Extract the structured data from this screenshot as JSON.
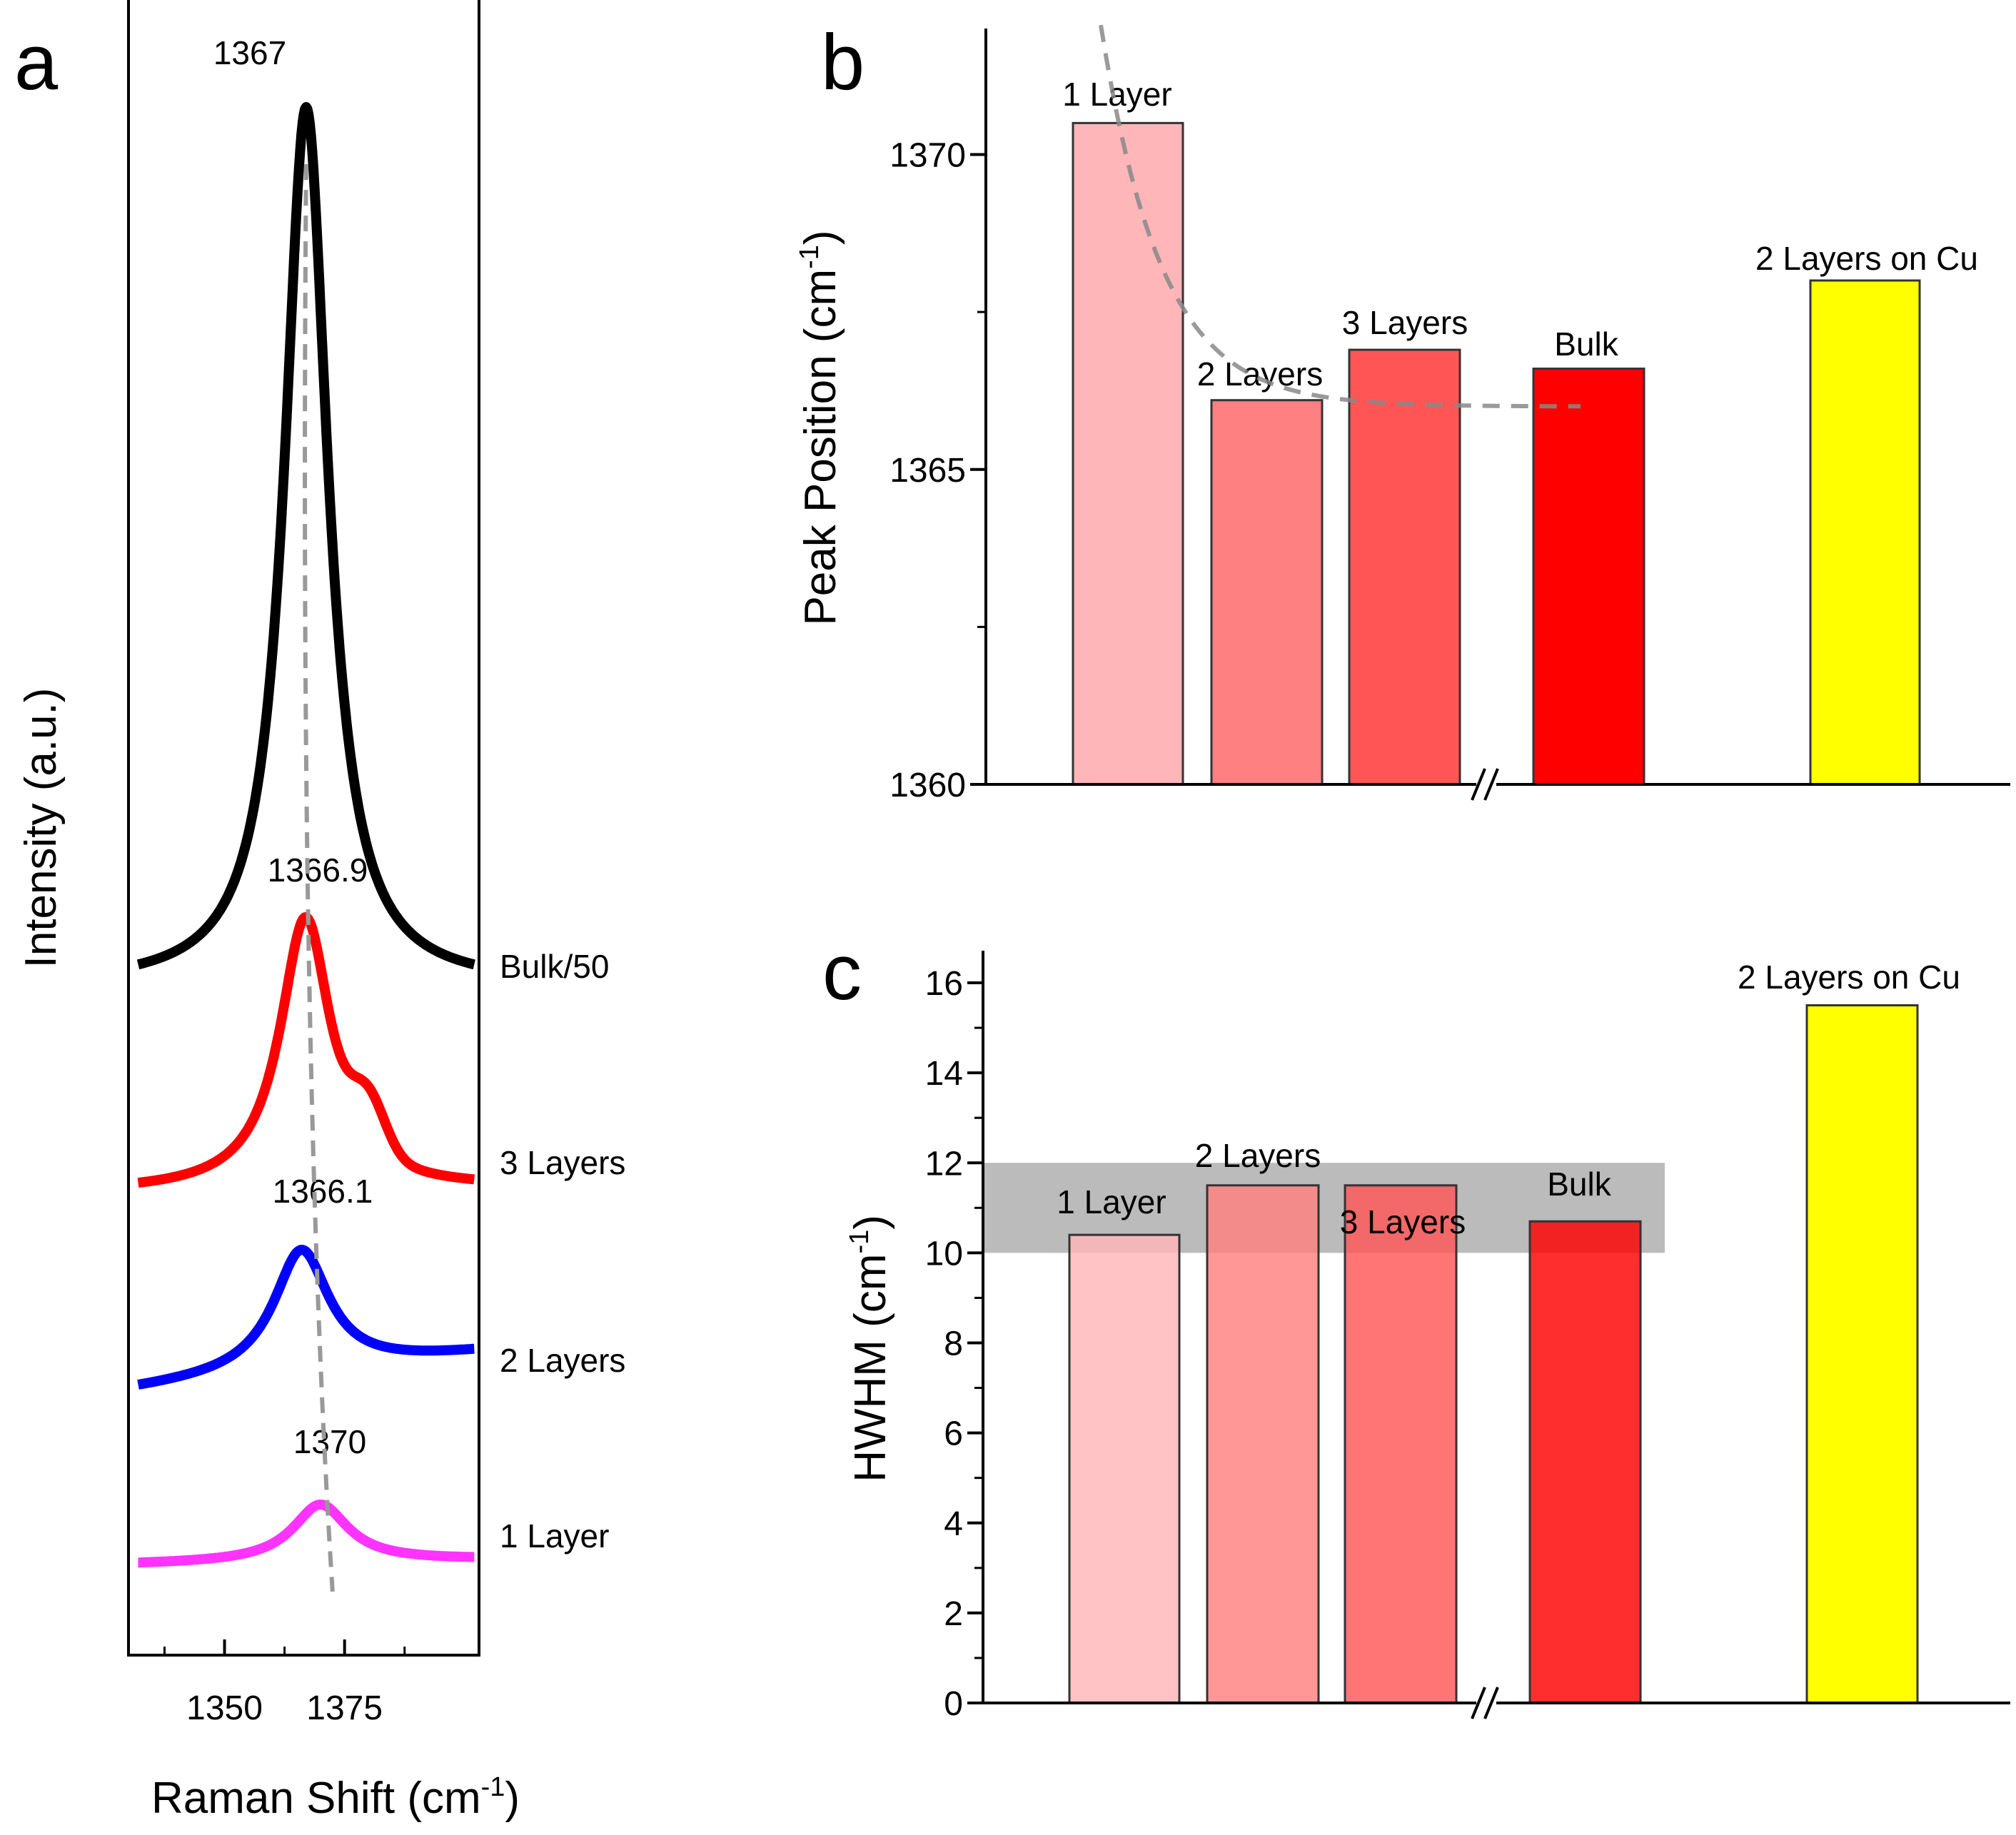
{
  "chart_data": [
    {
      "panel": "a",
      "type": "line",
      "xlabel": "Raman Shift (cm-1)",
      "ylabel": "Intensity (a.u.)",
      "xlim": [
        1330,
        1403
      ],
      "xticks": [
        1350,
        1375
      ],
      "series": [
        {
          "name": "Bulk/50",
          "peak": 1367,
          "peak_label": "1367",
          "color": "#000000"
        },
        {
          "name": "3 Layers",
          "peak": 1366.9,
          "peak_label": "1366.9",
          "color": "#ff0000"
        },
        {
          "name": "2 Layers",
          "peak": 1366.1,
          "peak_label": "1366.1",
          "color": "#0000ff"
        },
        {
          "name": "1 Layer",
          "peak": 1370,
          "peak_label": "1370",
          "color": "#ff33ff"
        }
      ]
    },
    {
      "panel": "b",
      "type": "bar",
      "ylabel": "Peak Position (cm-1)",
      "ylim": [
        1360,
        1372
      ],
      "yticks": [
        1360,
        1365,
        1370
      ],
      "categories": [
        "1 Layer",
        "2 Layers",
        "3 Layers",
        "Bulk",
        "2 Layers on Cu"
      ],
      "values": [
        1370.5,
        1366.1,
        1366.9,
        1366.6,
        1368.0
      ],
      "colors": [
        "#ffb6b9",
        "#ff8080",
        "#ff5555",
        "#ff0000",
        "#ffff00"
      ],
      "axis_break": "//",
      "fit_curve": "dashed gray guide, decays toward 1366"
    },
    {
      "panel": "c",
      "type": "bar",
      "ylabel": "HWHM (cm-1)",
      "ylim": [
        0,
        16.7
      ],
      "yticks": [
        0,
        2,
        4,
        6,
        8,
        10,
        12,
        14,
        16
      ],
      "categories": [
        "1 Layer",
        "2 Layers",
        "3 Layers",
        "Bulk",
        "2 Layers on Cu"
      ],
      "values": [
        10.4,
        11.5,
        11.5,
        10.7,
        15.5
      ],
      "colors": [
        "#ffb6b9",
        "#ff8080",
        "#ff5555",
        "#ff0000",
        "#ffff00"
      ],
      "shaded_band": [
        10,
        12
      ],
      "axis_break": "//"
    }
  ],
  "panels": {
    "a": "a",
    "b": "b",
    "c": "c"
  }
}
